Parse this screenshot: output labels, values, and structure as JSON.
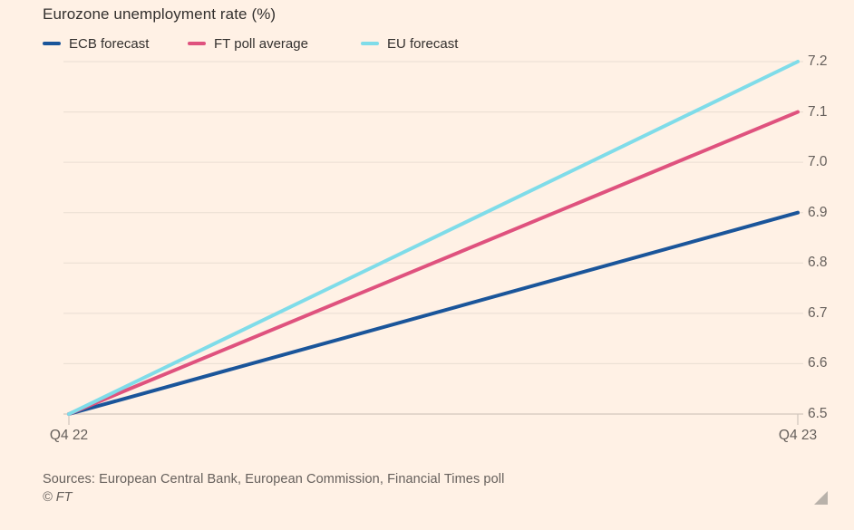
{
  "page": {
    "background_color": "#fff1e5"
  },
  "footer": {
    "sources": "Sources: European Central Bank, European Commission, Financial Times poll",
    "copyright": "© FT"
  },
  "chart_data": {
    "type": "line",
    "title": "Eurozone unemployment rate (%)",
    "x": [
      "Q4 22",
      "Q4 23"
    ],
    "series": [
      {
        "name": "ECB forecast",
        "color": "#1a559a",
        "values": [
          6.5,
          6.9
        ]
      },
      {
        "name": "FT poll average",
        "color": "#df527e",
        "values": [
          6.5,
          7.1
        ]
      },
      {
        "name": "EU forecast",
        "color": "#7fdce9",
        "values": [
          6.5,
          7.2
        ]
      }
    ],
    "ylim": [
      6.5,
      7.2
    ],
    "yticks": [
      6.5,
      6.6,
      6.7,
      6.8,
      6.9,
      7.0,
      7.1,
      7.2
    ],
    "xlabel": "",
    "ylabel": "",
    "grid": true,
    "ytick_side": "right",
    "legend_position": "top"
  }
}
